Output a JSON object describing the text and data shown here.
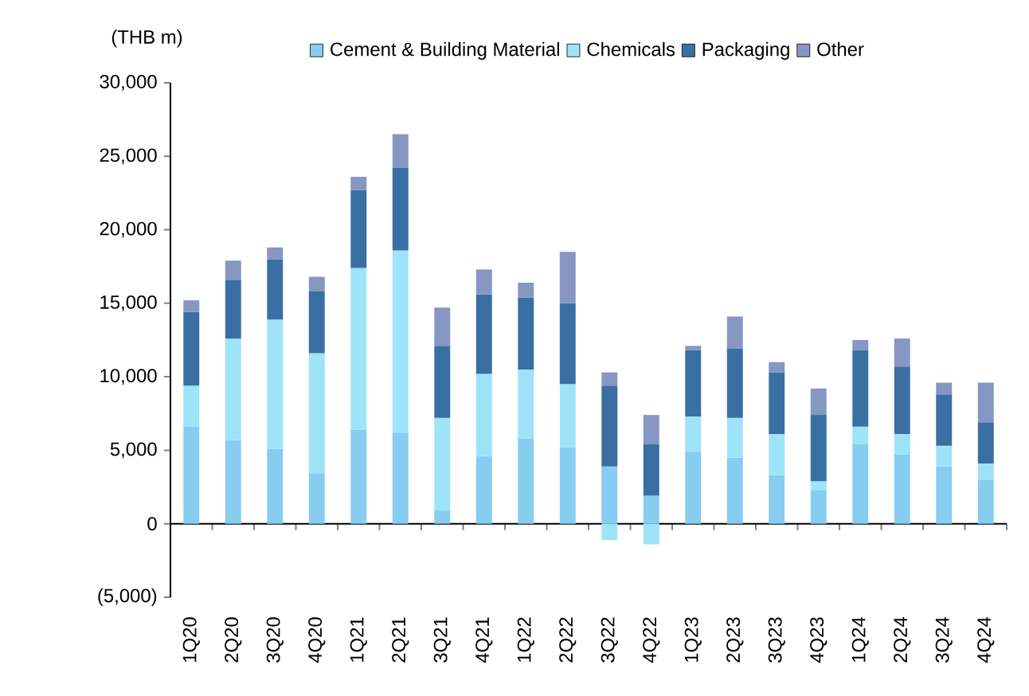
{
  "chart_data": {
    "type": "bar",
    "stacked": true,
    "ylabel": "(THB m)",
    "legend": "top",
    "categories": [
      "1Q20",
      "2Q20",
      "3Q20",
      "4Q20",
      "1Q21",
      "2Q21",
      "3Q21",
      "4Q21",
      "1Q22",
      "2Q22",
      "3Q22",
      "4Q22",
      "1Q23",
      "2Q23",
      "3Q23",
      "4Q23",
      "1Q24",
      "2Q24",
      "3Q24",
      "4Q24"
    ],
    "ylim": [
      -5000,
      30000
    ],
    "yticks": [
      {
        "value": -5000,
        "label": "(5,000)"
      },
      0,
      {
        "value": 5000,
        "label": "5,000"
      },
      {
        "value": 10000,
        "label": "10,000"
      },
      {
        "value": 15000,
        "label": "15,000"
      },
      {
        "value": 20000,
        "label": "20,000"
      },
      {
        "value": 25000,
        "label": "25,000"
      },
      {
        "value": 30000,
        "label": "30,000"
      }
    ],
    "series": [
      {
        "name": "Cement & Building Material",
        "color": "#87cdf0",
        "values": [
          6600,
          5700,
          5100,
          3400,
          6400,
          6200,
          900,
          4600,
          5800,
          5200,
          3900,
          1900,
          4900,
          4500,
          3300,
          2300,
          5400,
          4700,
          3900,
          3000
        ]
      },
      {
        "name": "Chemicals",
        "color": "#9ee3f7",
        "values": [
          2800,
          6900,
          8800,
          8200,
          11000,
          12400,
          6300,
          5600,
          4700,
          4300,
          -1100,
          -1400,
          2400,
          2700,
          2800,
          600,
          1200,
          1400,
          1400,
          1100
        ]
      },
      {
        "name": "Packaging",
        "color": "#3a6fa3",
        "values": [
          5000,
          4000,
          4100,
          4200,
          5300,
          5600,
          4900,
          5400,
          4900,
          5500,
          5500,
          3500,
          4500,
          4700,
          4200,
          4500,
          5200,
          4600,
          3500,
          2800
        ]
      },
      {
        "name": "Other",
        "color": "#8597c2",
        "values": [
          800,
          1300,
          800,
          1000,
          900,
          2300,
          2600,
          1700,
          1000,
          3500,
          900,
          2000,
          300,
          2200,
          700,
          1800,
          700,
          1900,
          800,
          2700
        ]
      }
    ]
  }
}
